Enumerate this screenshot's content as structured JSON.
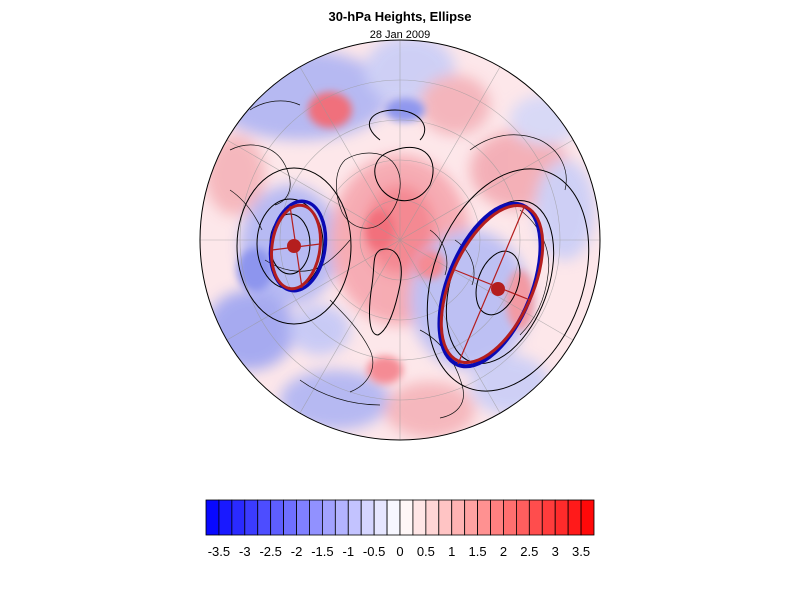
{
  "title": "30-hPa Heights, Ellipse",
  "date": "28 Jan 2009",
  "colorbar": {
    "tick_labels": [
      "-3.5",
      "-3",
      "-2.5",
      "-2",
      "-1.5",
      "-1",
      "-0.5",
      "0",
      "0.5",
      "1",
      "1.5",
      "2",
      "2.5",
      "3",
      "3.5"
    ],
    "min": -3.75,
    "max": 3.75,
    "step": 0.25,
    "low_color": "#0000ff",
    "mid_color": "#ffffff",
    "high_color": "#ff0000"
  },
  "colors": {
    "blue_ellipse": "#0a0ab4",
    "red_ellipse": "#b41e1e",
    "centroid": "#b41e1e"
  }
}
